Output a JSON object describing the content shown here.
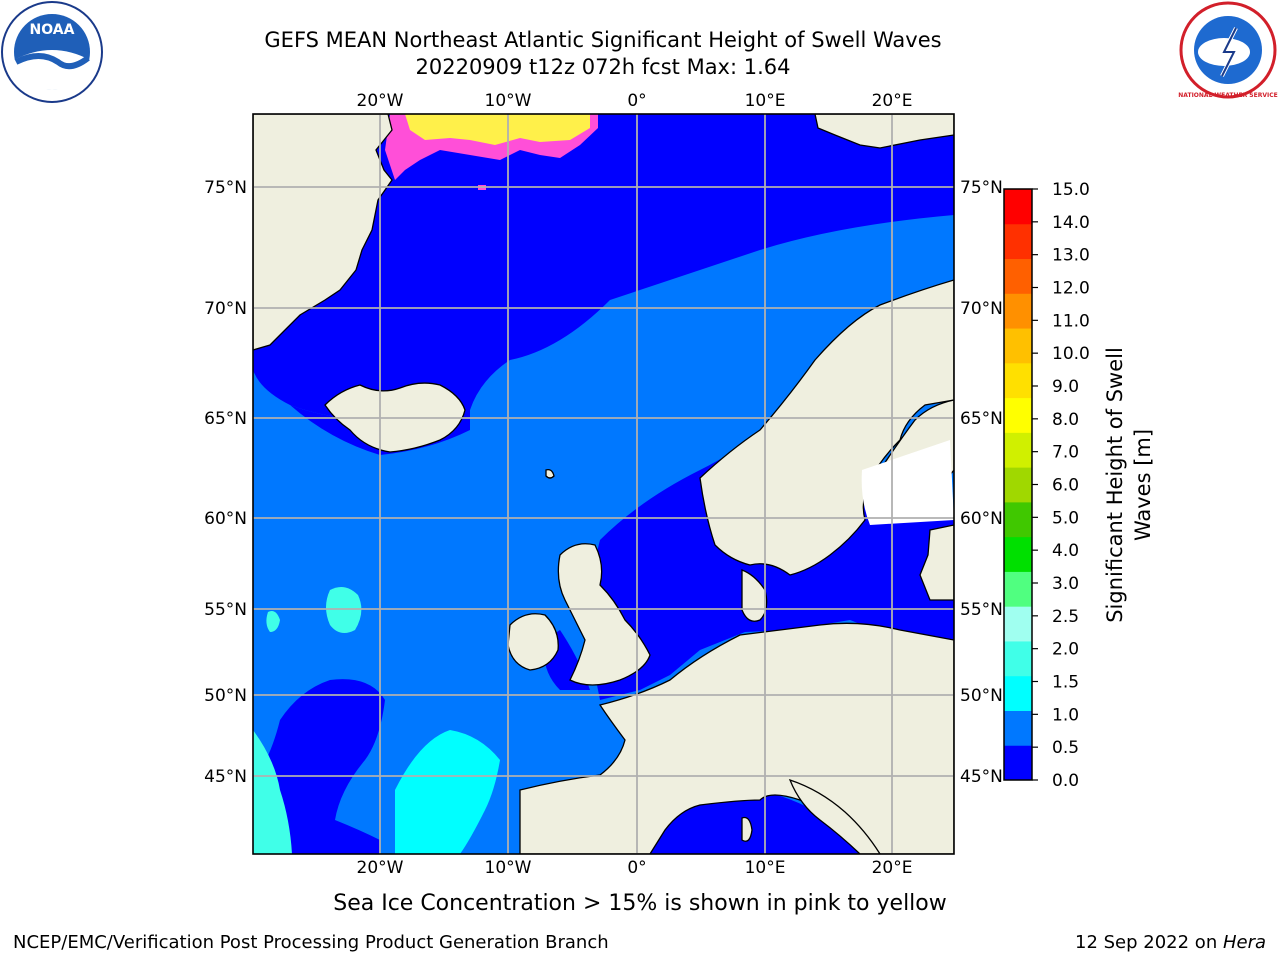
{
  "header": {
    "title_line1": "GEFS MEAN Northeast Atlantic Significant Height of Swell Waves",
    "title_line2": "20220909 t12z 072h fcst   Max: 1.64"
  },
  "logos": {
    "left": "noaa-logo",
    "left_text": "NOAA",
    "right": "nws-logo",
    "right_text": "NATIONAL WEATHER SERVICE"
  },
  "map": {
    "lon_labels": [
      "20°W",
      "10°W",
      "0°",
      "10°E",
      "20°E"
    ],
    "lat_labels": [
      "75°N",
      "70°N",
      "65°N",
      "60°N",
      "55°N",
      "50°N",
      "45°N"
    ],
    "colors": {
      "land": "#efefdf",
      "grid": "#b0b0b0",
      "ice_pink": "#ff4fd8",
      "ice_yellow": "#fff04a"
    }
  },
  "colorbar": {
    "label_line1": "Significant Height of Swell",
    "label_line2": "Waves [m]",
    "ticks": [
      "0.0",
      "0.5",
      "1.0",
      "1.5",
      "2.0",
      "2.5",
      "3.0",
      "4.0",
      "5.0",
      "6.0",
      "7.0",
      "8.0",
      "9.0",
      "10.0",
      "11.0",
      "12.0",
      "13.0",
      "14.0",
      "15.0"
    ],
    "colors": [
      "#0000ff",
      "#0078ff",
      "#00ffff",
      "#40ffe8",
      "#a0fff0",
      "#50ff80",
      "#00e000",
      "#40c800",
      "#a0d800",
      "#d0f000",
      "#ffff00",
      "#ffe000",
      "#ffc000",
      "#ff9000",
      "#ff6000",
      "#ff3000",
      "#ff0000"
    ]
  },
  "footer": {
    "note": "Sea Ice Concentration > 15% is shown in pink to yellow",
    "left": "NCEP/EMC/Verification Post Processing Product Generation Branch",
    "right_date": "12 Sep 2022 on ",
    "right_machine": "Hera"
  }
}
